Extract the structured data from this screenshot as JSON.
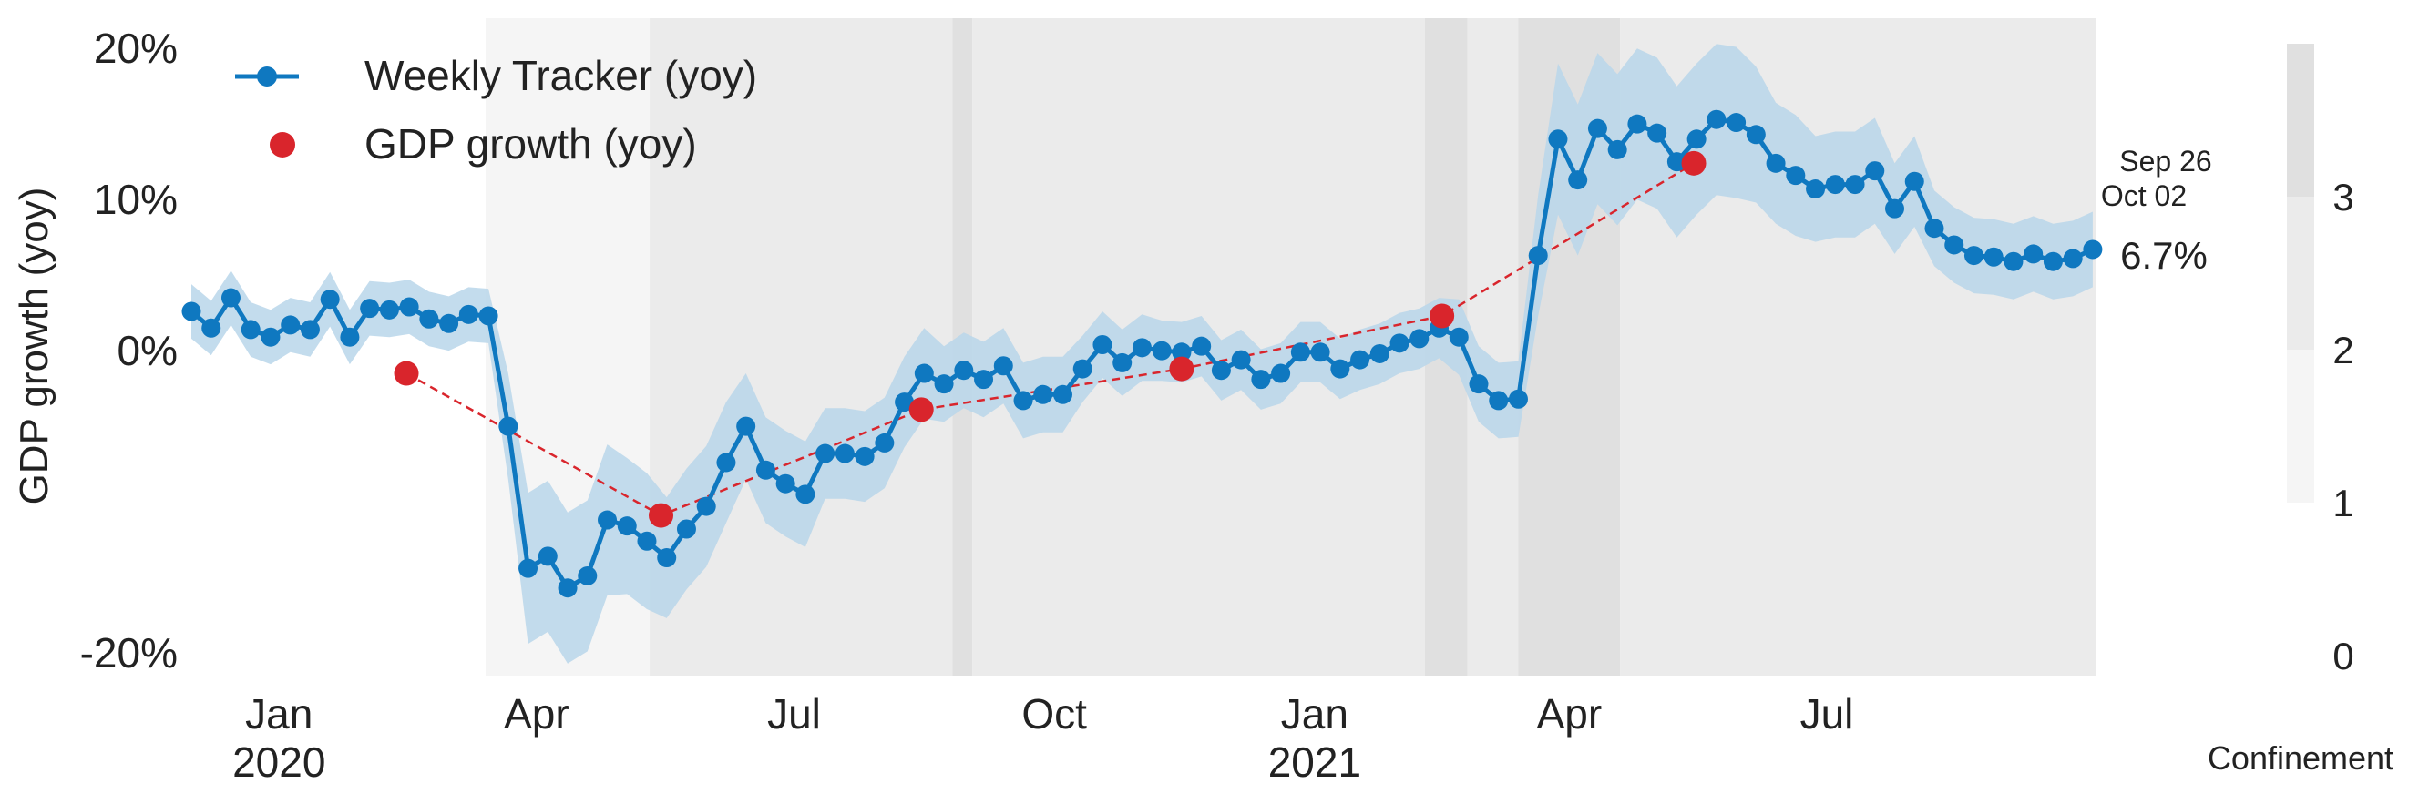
{
  "chart_data": {
    "type": "line",
    "title": "",
    "ylabel": "GDP growth (yoy)",
    "ylim": [
      -21.5,
      22
    ],
    "y_ticks": [
      {
        "value": -20,
        "label": "-20%"
      },
      {
        "value": 0,
        "label": "0%"
      },
      {
        "value": 10,
        "label": "10%"
      },
      {
        "value": 20,
        "label": "20%"
      }
    ],
    "x_ticks": [
      {
        "date": "2020-01-01",
        "label": "Jan",
        "sublabel": "2020"
      },
      {
        "date": "2020-04-01",
        "label": "Apr",
        "sublabel": ""
      },
      {
        "date": "2020-07-01",
        "label": "Jul",
        "sublabel": ""
      },
      {
        "date": "2020-10-01",
        "label": "Oct",
        "sublabel": ""
      },
      {
        "date": "2021-01-01",
        "label": "Jan",
        "sublabel": "2021"
      },
      {
        "date": "2021-04-01",
        "label": "Apr",
        "sublabel": ""
      },
      {
        "date": "2021-07-01",
        "label": "Jul",
        "sublabel": ""
      }
    ],
    "xlim": [
      "2019-12-01",
      "2021-10-04"
    ],
    "grid": false,
    "legend_position": "top-left",
    "series": [
      {
        "name": "Weekly Tracker (yoy)",
        "color": "#0f78c0",
        "band_color": "#b9d6ea",
        "start_date": "2019-12-01",
        "step_days": 7,
        "values": [
          2.6,
          1.5,
          3.5,
          1.4,
          0.9,
          1.7,
          1.4,
          3.4,
          0.9,
          2.8,
          2.7,
          2.9,
          2.1,
          1.8,
          2.4,
          2.3,
          -5.0,
          -14.4,
          -13.6,
          -15.7,
          -14.9,
          -11.2,
          -11.6,
          -12.6,
          -13.7,
          -11.8,
          -10.3,
          -7.4,
          -5.0,
          -7.9,
          -8.8,
          -9.5,
          -6.8,
          -6.8,
          -7.0,
          -6.1,
          -3.4,
          -1.5,
          -2.2,
          -1.3,
          -1.9,
          -1.0,
          -3.3,
          -2.9,
          -2.9,
          -1.2,
          0.4,
          -0.8,
          0.2,
          0.0,
          -0.1,
          0.3,
          -1.3,
          -0.6,
          -1.9,
          -1.5,
          -0.1,
          -0.1,
          -1.2,
          -0.6,
          -0.2,
          0.5,
          0.8,
          1.5,
          0.9,
          -2.2,
          -3.3,
          -3.2,
          6.3,
          14.0,
          11.3,
          14.7,
          13.3,
          15.0,
          14.4,
          12.5,
          14.0,
          15.3,
          15.1,
          14.3,
          12.4,
          11.6,
          10.7,
          11.0,
          11.0,
          11.9,
          9.4,
          11.2,
          8.1,
          7.0,
          6.3,
          6.2,
          5.9,
          6.4,
          5.9,
          6.1,
          6.7
        ],
        "band_halfwidth": [
          1.8,
          1.8,
          1.8,
          1.8,
          1.8,
          1.8,
          1.8,
          1.8,
          1.8,
          1.8,
          1.8,
          1.8,
          1.8,
          1.8,
          1.8,
          1.8,
          3.5,
          5.0,
          5.0,
          5.0,
          5.0,
          5.0,
          4.5,
          4.5,
          4.0,
          4.0,
          4.0,
          4.0,
          3.5,
          3.5,
          3.5,
          3.5,
          3.0,
          3.0,
          3.0,
          3.0,
          3.0,
          3.0,
          2.5,
          2.5,
          2.5,
          2.5,
          2.5,
          2.5,
          2.5,
          2.2,
          2.2,
          2.2,
          2.2,
          2.0,
          2.0,
          2.0,
          2.0,
          2.0,
          2.0,
          2.0,
          2.0,
          2.0,
          2.0,
          2.0,
          2.0,
          2.0,
          2.0,
          2.0,
          2.5,
          2.5,
          2.5,
          2.5,
          4.0,
          5.0,
          5.0,
          5.0,
          5.0,
          5.0,
          5.0,
          5.0,
          5.0,
          5.0,
          5.0,
          4.5,
          4.0,
          4.0,
          3.5,
          3.5,
          3.5,
          3.5,
          3.0,
          3.0,
          2.5,
          2.5,
          2.5,
          2.5,
          2.5,
          2.5,
          2.5,
          2.5,
          2.5
        ]
      },
      {
        "name": "GDP growth (yoy)",
        "color": "#d9252c",
        "points": [
          {
            "date": "2020-02-15",
            "value": -1.5
          },
          {
            "date": "2020-05-15",
            "value": -10.9
          },
          {
            "date": "2020-08-15",
            "value": -3.9
          },
          {
            "date": "2020-11-15",
            "value": -1.2
          },
          {
            "date": "2021-02-15",
            "value": 2.3
          },
          {
            "date": "2021-05-15",
            "value": 12.4
          }
        ]
      }
    ],
    "annotation": {
      "label_top": "Sep 26",
      "label_bottom": "Oct 02",
      "value_label": "6.7%"
    },
    "confinement": {
      "label": "Confinement",
      "colorbar_ticks": [
        {
          "value": 0,
          "label": "0"
        },
        {
          "value": 1,
          "label": "1"
        },
        {
          "value": 2,
          "label": "2"
        },
        {
          "value": 3,
          "label": "3"
        }
      ],
      "colors": [
        "#ffffff",
        "#f5f5f5",
        "#ebebeb",
        "#e0e0e0"
      ],
      "periods": [
        {
          "start": "2020-03-14",
          "end": "2020-05-11",
          "level": 1
        },
        {
          "start": "2020-05-11",
          "end": "2020-08-26",
          "level": 2
        },
        {
          "start": "2020-08-26",
          "end": "2020-09-02",
          "level": 3
        },
        {
          "start": "2020-09-02",
          "end": "2021-02-09",
          "level": 2
        },
        {
          "start": "2021-02-09",
          "end": "2021-02-24",
          "level": 3
        },
        {
          "start": "2021-02-24",
          "end": "2021-03-14",
          "level": 2
        },
        {
          "start": "2021-03-14",
          "end": "2021-04-19",
          "level": 3
        },
        {
          "start": "2021-04-19",
          "end": "2021-10-04",
          "level": 2
        }
      ]
    }
  }
}
